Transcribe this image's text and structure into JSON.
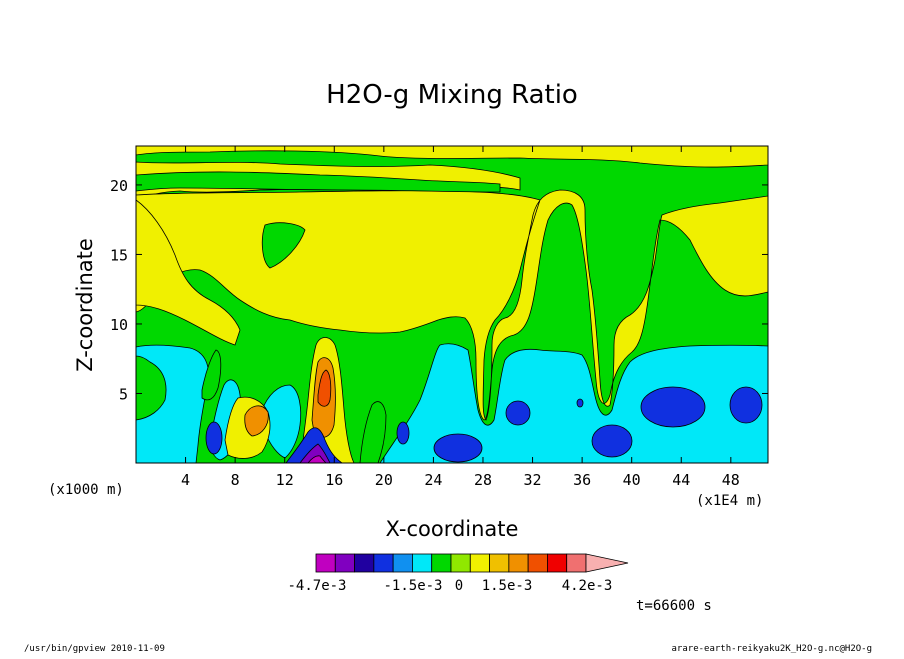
{
  "chart_data": {
    "type": "heatmap",
    "title": "H2O-g Mixing Ratio",
    "xlabel": "X-coordinate",
    "ylabel": "Z-coordinate",
    "x_unit_left": "(x1000 m)",
    "x_unit_right": "(x1E4 m)",
    "xlim": [
      0,
      51
    ],
    "ylim": [
      0,
      22.8
    ],
    "x_ticks": [
      4,
      8,
      12,
      16,
      20,
      24,
      28,
      32,
      36,
      40,
      44,
      48
    ],
    "y_ticks": [
      5,
      10,
      15,
      20
    ],
    "colorbar": {
      "labels": [
        "-4.7e-3",
        "-1.5e-3",
        "0",
        "1.5e-3",
        "4.2e-3"
      ],
      "colors": [
        "#c000c0",
        "#8000c0",
        "#2000a0",
        "#1030e0",
        "#1090f0",
        "#00e8f8",
        "#00d800",
        "#90e800",
        "#f0f000",
        "#f0c000",
        "#f09000",
        "#f05000",
        "#f00000",
        "#f07070",
        "#f8b0b0"
      ]
    },
    "time_label": "t=66600 s",
    "colors": {
      "dark_blue": "#2030d0",
      "cyan": "#00e8f8",
      "green": "#00d800",
      "yellow": "#f0f000",
      "orange": "#f09000",
      "purple": "#8000c0"
    }
  },
  "footer": {
    "left": "/usr/bin/gpview  2010-11-09",
    "right": "arare-earth-reikyaku2K_H2O-g.nc@H2O-g"
  }
}
